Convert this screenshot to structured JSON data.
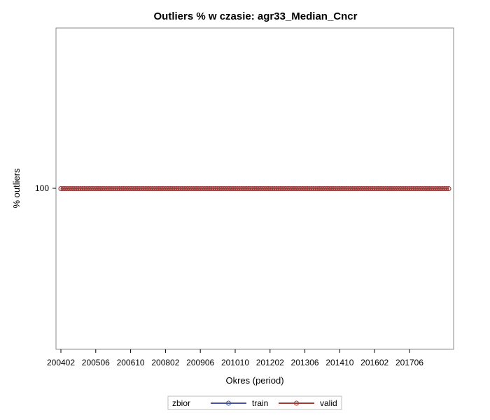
{
  "chart_data": {
    "type": "line",
    "title": "Outliers % w czasie: agr33_Median_Cncr",
    "xlabel": "Okres (period)",
    "ylabel": "% outliers",
    "x_tick_labels": [
      "200402",
      "200506",
      "200610",
      "200802",
      "200906",
      "201010",
      "201202",
      "201306",
      "201410",
      "201602",
      "201706"
    ],
    "x_range": [
      "200402",
      "201812"
    ],
    "y_tick_labels": [
      "100"
    ],
    "ylim": [
      50,
      150
    ],
    "grid": false,
    "legend": {
      "title": "zbior",
      "placement": "bottom-center"
    },
    "series": [
      {
        "name": "train",
        "color": "#44559c",
        "marker": "circle",
        "y_constant": 100,
        "x_start": "200402",
        "x_end": "201812"
      },
      {
        "name": "valid",
        "color": "#a23a32",
        "marker": "circle",
        "y_constant": 100,
        "x_start": "200402",
        "x_end": "201812"
      }
    ]
  }
}
